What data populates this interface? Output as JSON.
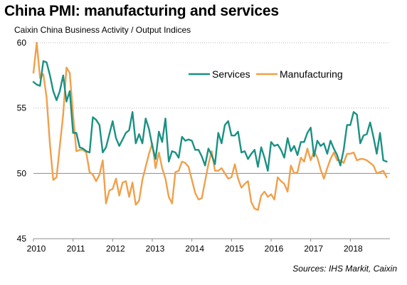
{
  "chart_data": {
    "type": "line",
    "title": "China PMI: manufacturing and services",
    "subtitle": "Caixin China Business Activity / Output Indices",
    "source": "Sources: IHS Markit, Caixin",
    "xlabel": "",
    "ylabel": "",
    "x_range": [
      2010.0,
      2019.0
    ],
    "ylim": [
      45,
      60
    ],
    "y_ticks": [
      45,
      50,
      55,
      60
    ],
    "x_ticks": [
      "2010",
      "2011",
      "2012",
      "2013",
      "2014",
      "2015",
      "2016",
      "2017",
      "2018"
    ],
    "grid": "horizontal dotted",
    "reference_line": 50,
    "legend_position": "top-center",
    "series": [
      {
        "name": "Services",
        "color": "#1a9184",
        "x": [
          2010.0,
          2010.083,
          2010.167,
          2010.25,
          2010.333,
          2010.417,
          2010.5,
          2010.583,
          2010.667,
          2010.75,
          2010.833,
          2010.917,
          2011.0,
          2011.083,
          2011.167,
          2011.25,
          2011.333,
          2011.417,
          2011.5,
          2011.583,
          2011.667,
          2011.75,
          2011.833,
          2011.917,
          2012.0,
          2012.083,
          2012.167,
          2012.25,
          2012.333,
          2012.417,
          2012.5,
          2012.583,
          2012.667,
          2012.75,
          2012.833,
          2012.917,
          2013.0,
          2013.083,
          2013.167,
          2013.25,
          2013.333,
          2013.417,
          2013.5,
          2013.583,
          2013.667,
          2013.75,
          2013.833,
          2013.917,
          2014.0,
          2014.083,
          2014.167,
          2014.25,
          2014.333,
          2014.417,
          2014.5,
          2014.583,
          2014.667,
          2014.75,
          2014.833,
          2014.917,
          2015.0,
          2015.083,
          2015.167,
          2015.25,
          2015.333,
          2015.417,
          2015.5,
          2015.583,
          2015.667,
          2015.75,
          2015.833,
          2015.917,
          2016.0,
          2016.083,
          2016.167,
          2016.25,
          2016.333,
          2016.417,
          2016.5,
          2016.583,
          2016.667,
          2016.75,
          2016.833,
          2016.917,
          2017.0,
          2017.083,
          2017.167,
          2017.25,
          2017.333,
          2017.417,
          2017.5,
          2017.583,
          2017.667,
          2017.75,
          2017.833,
          2017.917,
          2018.0,
          2018.083,
          2018.167,
          2018.25,
          2018.333,
          2018.417,
          2018.5,
          2018.583,
          2018.667,
          2018.75,
          2018.833,
          2018.917
        ],
        "y": [
          57.0,
          56.8,
          56.7,
          58.6,
          58.5,
          57.5,
          56.3,
          55.6,
          56.3,
          57.5,
          55.5,
          56.3,
          53.1,
          53.1,
          52.0,
          51.9,
          51.7,
          51.6,
          54.3,
          54.1,
          53.7,
          51.6,
          52.0,
          53.0,
          54.0,
          52.7,
          52.1,
          52.6,
          53.1,
          53.3,
          54.7,
          52.3,
          53.0,
          52.3,
          54.2,
          53.4,
          52.1,
          51.1,
          53.2,
          52.4,
          54.2,
          50.9,
          51.7,
          51.6,
          51.2,
          52.8,
          52.5,
          52.6,
          52.5,
          51.8,
          51.8,
          51.3,
          50.6,
          51.9,
          51.4,
          50.7,
          53.1,
          52.3,
          53.7,
          54.0,
          52.9,
          52.9,
          53.2,
          51.6,
          51.7,
          51.1,
          51.5,
          51.8,
          50.5,
          52.0,
          51.2,
          50.2,
          52.4,
          52.1,
          52.2,
          51.8,
          51.2,
          52.7,
          51.7,
          52.1,
          51.4,
          52.4,
          52.4,
          53.1,
          53.5,
          51.3,
          52.5,
          52.1,
          52.3,
          51.5,
          52.5,
          51.9,
          51.4,
          50.6,
          51.8,
          53.7,
          53.7,
          54.7,
          54.5,
          52.3,
          52.9,
          53.0,
          53.9,
          52.8,
          51.5,
          53.1,
          51.0,
          50.9
        ]
      },
      {
        "name": "Manufacturing",
        "color": "#f0a04b",
        "x": [
          2010.0,
          2010.083,
          2010.167,
          2010.25,
          2010.333,
          2010.417,
          2010.5,
          2010.583,
          2010.667,
          2010.75,
          2010.833,
          2010.917,
          2011.0,
          2011.083,
          2011.167,
          2011.25,
          2011.333,
          2011.417,
          2011.5,
          2011.583,
          2011.667,
          2011.75,
          2011.833,
          2011.917,
          2012.0,
          2012.083,
          2012.167,
          2012.25,
          2012.333,
          2012.417,
          2012.5,
          2012.583,
          2012.667,
          2012.75,
          2012.833,
          2012.917,
          2013.0,
          2013.083,
          2013.167,
          2013.25,
          2013.333,
          2013.417,
          2013.5,
          2013.583,
          2013.667,
          2013.75,
          2013.833,
          2013.917,
          2014.0,
          2014.083,
          2014.167,
          2014.25,
          2014.333,
          2014.417,
          2014.5,
          2014.583,
          2014.667,
          2014.75,
          2014.833,
          2014.917,
          2015.0,
          2015.083,
          2015.167,
          2015.25,
          2015.333,
          2015.417,
          2015.5,
          2015.583,
          2015.667,
          2015.75,
          2015.833,
          2015.917,
          2016.0,
          2016.083,
          2016.167,
          2016.25,
          2016.333,
          2016.417,
          2016.5,
          2016.583,
          2016.667,
          2016.75,
          2016.833,
          2016.917,
          2017.0,
          2017.083,
          2017.167,
          2017.25,
          2017.333,
          2017.417,
          2017.5,
          2017.583,
          2017.667,
          2017.75,
          2017.833,
          2017.917,
          2018.0,
          2018.083,
          2018.167,
          2018.25,
          2018.333,
          2018.417,
          2018.5,
          2018.583,
          2018.667,
          2018.75,
          2018.833,
          2018.917
        ],
        "y": [
          57.7,
          60.0,
          57.3,
          57.6,
          55.8,
          52.2,
          49.5,
          49.7,
          52.1,
          54.5,
          58.1,
          57.7,
          54.5,
          51.7,
          51.8,
          51.8,
          51.6,
          50.1,
          49.9,
          49.4,
          49.9,
          51.0,
          47.7,
          48.7,
          48.8,
          49.6,
          48.3,
          49.3,
          49.4,
          48.2,
          49.3,
          47.6,
          47.9,
          49.5,
          50.5,
          51.5,
          52.3,
          50.4,
          51.6,
          50.4,
          49.6,
          48.2,
          47.7,
          50.1,
          50.2,
          50.9,
          50.8,
          50.5,
          49.5,
          48.5,
          48.0,
          48.1,
          49.4,
          50.7,
          51.7,
          50.2,
          50.2,
          50.4,
          50.0,
          49.6,
          49.7,
          50.7,
          49.6,
          48.9,
          49.2,
          49.4,
          47.8,
          47.3,
          47.2,
          48.3,
          48.6,
          48.2,
          48.4,
          48.0,
          49.7,
          49.4,
          49.2,
          48.6,
          50.6,
          50.0,
          50.1,
          51.2,
          50.9,
          51.9,
          51.0,
          51.7,
          51.2,
          50.3,
          49.6,
          50.4,
          51.1,
          51.6,
          51.0,
          51.0,
          50.8,
          51.5,
          51.5,
          51.6,
          51.0,
          51.1,
          51.1,
          51.0,
          50.8,
          50.6,
          50.0,
          50.1,
          50.2,
          49.7
        ]
      }
    ]
  }
}
